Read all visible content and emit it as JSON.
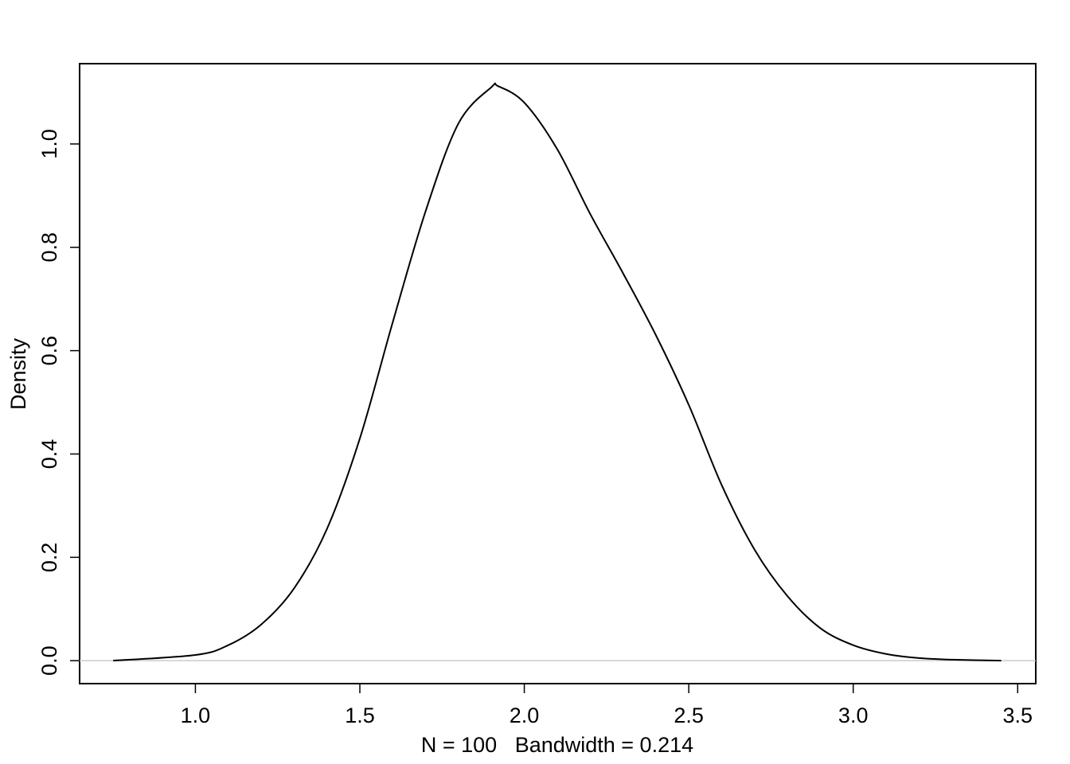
{
  "chart_data": {
    "type": "line",
    "xlabel": "N = 100   Bandwidth = 0.214",
    "ylabel": "Density",
    "x": [
      0.75,
      1.0,
      1.1,
      1.2,
      1.3,
      1.4,
      1.5,
      1.6,
      1.7,
      1.8,
      1.9,
      1.92,
      2.0,
      2.1,
      2.2,
      2.3,
      2.4,
      2.5,
      2.6,
      2.7,
      2.8,
      2.9,
      3.0,
      3.1,
      3.2,
      3.3,
      3.45
    ],
    "series": [
      {
        "color": "#000000",
        "values": [
          0.0,
          0.011,
          0.03,
          0.07,
          0.14,
          0.255,
          0.43,
          0.655,
          0.87,
          1.04,
          1.11,
          1.112,
          1.08,
          0.99,
          0.865,
          0.75,
          0.63,
          0.495,
          0.34,
          0.215,
          0.125,
          0.063,
          0.03,
          0.013,
          0.005,
          0.002,
          0.0
        ]
      }
    ],
    "xlim": [
      0.648,
      3.555
    ],
    "ylim": [
      -0.0444,
      1.1554
    ],
    "xticks": [
      {
        "value": 1,
        "label": "1.0"
      },
      1.5,
      {
        "value": 2,
        "label": "2.0"
      },
      2.5,
      {
        "value": 3,
        "label": "3.0"
      },
      3.5
    ],
    "yticks": [
      {
        "value": 0,
        "label": "0.0"
      },
      0.2,
      0.4,
      0.6,
      0.8,
      {
        "value": 1,
        "label": "1.0"
      }
    ],
    "zero_line": true
  }
}
